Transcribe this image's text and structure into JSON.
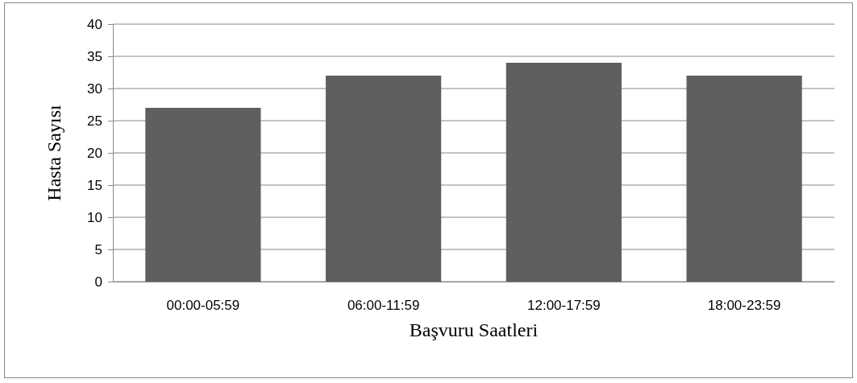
{
  "chart_data": {
    "type": "bar",
    "xlabel": "Başvuru Saatleri",
    "ylabel": "Hasta Sayısı",
    "categories": [
      "00:00-05:59",
      "06:00-11:59",
      "12:00-17:59",
      "18:00-23:59"
    ],
    "values": [
      27,
      32,
      34,
      32
    ],
    "color": "#5f5f5f",
    "ylim": [
      0,
      40
    ],
    "yticks": [
      0,
      5,
      10,
      15,
      20,
      25,
      30,
      35,
      40
    ],
    "grid": "y"
  }
}
